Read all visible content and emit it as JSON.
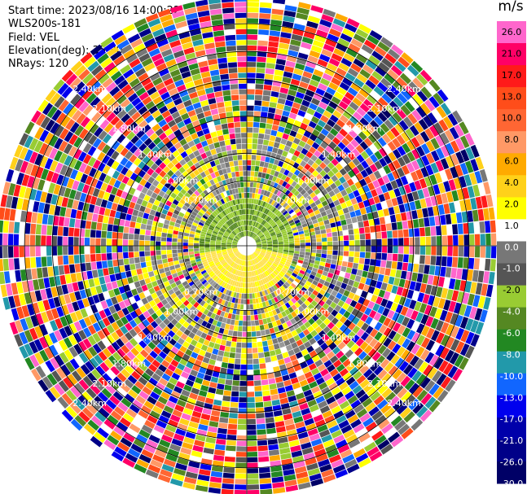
{
  "info": {
    "start_time": "Start time: 2023/08/16 14:00:22",
    "instrument": "WLS200s-181",
    "field": "Field: VEL",
    "elevation": "Elevation(deg): 35.30",
    "nrays": "NRays: 120"
  },
  "chart_data": {
    "type": "heatmap",
    "projection": "polar-ppi",
    "field": "VEL",
    "unit": "m/s",
    "nrays": 120,
    "range_rings_km": [
      0.7,
      1.0,
      1.4,
      1.8,
      2.1,
      2.4
    ],
    "ring_labels": [
      "0.70km",
      "1.00km",
      "1.40km",
      "1.80km",
      "2.10km",
      "2.40km"
    ],
    "colorbar": {
      "ticks": [
        "26.0",
        "21.0",
        "17.0",
        "13.0",
        "10.0",
        "8.0",
        "6.0",
        "4.0",
        "2.0",
        "1.0",
        "0.0",
        "-1.0",
        "-2.0",
        "-4.0",
        "-6.0",
        "-8.0",
        "-10.0",
        "-13.0",
        "-17.0",
        "-21.0",
        "-26.0",
        "-30.0"
      ],
      "colors": [
        "#ff66cc",
        "#ff0066",
        "#ff1a1a",
        "#ff4d1a",
        "#ff6633",
        "#ff9966",
        "#ffaa00",
        "#ffd11a",
        "#ffff00",
        "#ffffff",
        "#777777",
        "#555555",
        "#99cc33",
        "#558822",
        "#228822",
        "#2299aa",
        "#1166ff",
        "#0000ee",
        "#0000aa",
        "#000088",
        "#000066"
      ]
    }
  }
}
